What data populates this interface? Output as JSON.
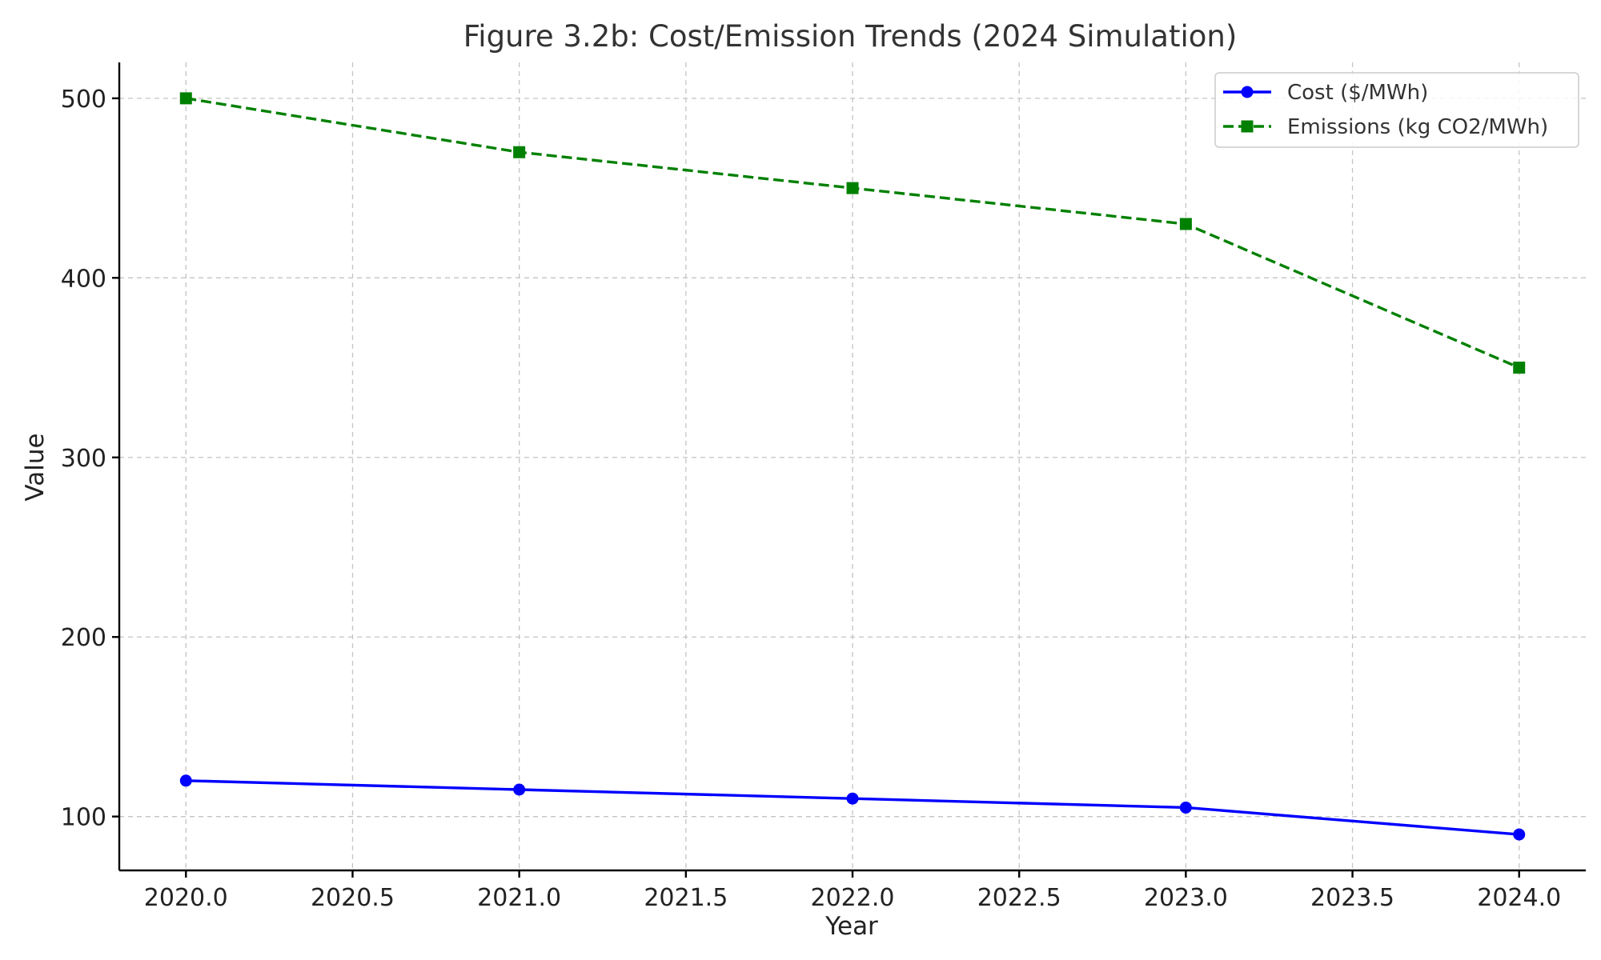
{
  "chart_data": {
    "type": "line",
    "title": "Figure 3.2b: Cost/Emission Trends (2024 Simulation)",
    "xlabel": "Year",
    "ylabel": "Value",
    "x": [
      2020,
      2021,
      2022,
      2023,
      2024
    ],
    "xlim": [
      2019.8,
      2024.2
    ],
    "ylim": [
      70,
      520
    ],
    "xticks": [
      2020.0,
      2020.5,
      2021.0,
      2021.5,
      2022.0,
      2022.5,
      2023.0,
      2023.5,
      2024.0
    ],
    "xtick_labels": [
      "2020.0",
      "2020.5",
      "2021.0",
      "2021.5",
      "2022.0",
      "2022.5",
      "2023.0",
      "2023.5",
      "2024.0"
    ],
    "yticks": [
      100,
      200,
      300,
      400,
      500
    ],
    "ytick_labels": [
      "100",
      "200",
      "300",
      "400",
      "500"
    ],
    "grid": true,
    "legend_position": "top-right",
    "series": [
      {
        "name": "Cost ($/MWh)",
        "values": [
          120,
          115,
          110,
          105,
          90
        ],
        "color": "#0000ff",
        "line_style": "solid",
        "marker": "circle"
      },
      {
        "name": "Emissions (kg CO2/MWh)",
        "values": [
          500,
          470,
          450,
          430,
          350
        ],
        "color": "#008000",
        "line_style": "dashed",
        "marker": "square"
      }
    ]
  }
}
